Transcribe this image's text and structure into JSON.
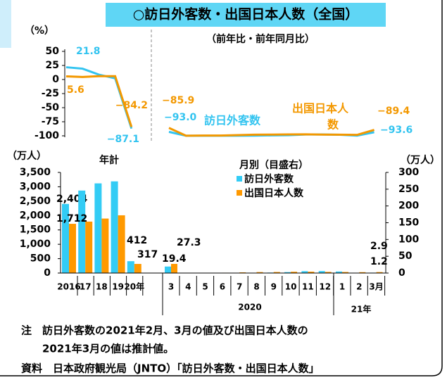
{
  "header": {
    "title": "○訪日外客数・出国日本人数（全国）"
  },
  "chart_data": [
    {
      "type": "line",
      "ylabel": "（%）",
      "ylim": [
        -100,
        50
      ],
      "yticks": [
        50,
        25,
        0,
        -25,
        -50,
        -75,
        -100
      ],
      "series": [
        {
          "color": "#33c4f0",
          "values": [
            21.8,
            19.3,
            8.7,
            2.2,
            -87.1
          ],
          "value_labels": [
            "21.8",
            null,
            null,
            null,
            "−87.1"
          ]
        },
        {
          "color": "#f39800",
          "values": [
            5.6,
            4.5,
            6.0,
            5.9,
            -84.2
          ],
          "value_labels": [
            "5.6",
            null,
            null,
            null,
            "−84.2"
          ]
        }
      ]
    },
    {
      "type": "line",
      "subtitle": "（前年比・前年同月比）",
      "ylim": [
        -100,
        50
      ],
      "annotations": [
        "訪日外客数",
        "出国日本人",
        "数"
      ],
      "series": [
        {
          "color": "#33c4f0",
          "values": [
            -93.0,
            -99.9,
            -99.9,
            -99.9,
            -99.9,
            -99.7,
            -99.2,
            -98.9,
            -97.7,
            -97.7,
            -98.1,
            -99.7,
            -93.6
          ],
          "value_labels": [
            "−93.0",
            null,
            null,
            null,
            null,
            null,
            null,
            null,
            null,
            null,
            null,
            null,
            "−93.6"
          ]
        },
        {
          "color": "#f39800",
          "values": [
            -85.9,
            -99.9,
            -99.6,
            -99.5,
            -98.7,
            -98.0,
            -97.8,
            -97.5,
            -97.3,
            -97.8,
            -97.9,
            -98.3,
            -89.4
          ],
          "value_labels": [
            "−85.9",
            null,
            null,
            null,
            null,
            null,
            null,
            null,
            null,
            null,
            null,
            null,
            "−89.4"
          ]
        }
      ]
    },
    {
      "type": "bar",
      "title": "年計",
      "ylabel": "（万人）",
      "categories": [
        "2016",
        "17",
        "18",
        "19",
        "20年"
      ],
      "ylim": [
        0,
        3500
      ],
      "yticks": [
        0,
        500,
        {
          "value": 1000,
          "label": "1,000"
        },
        {
          "value": 1500,
          "label": "1,500"
        },
        {
          "value": 2000,
          "label": "2,000"
        },
        {
          "value": 2500,
          "label": "2,500"
        },
        {
          "value": 3000,
          "label": "3,000"
        },
        {
          "value": 3500,
          "label": "3,500"
        }
      ],
      "series": [
        {
          "color": "#33ccf5",
          "values": [
            2404,
            2869,
            3119,
            3188,
            412
          ],
          "value_labels": [
            "2,404",
            null,
            null,
            null,
            "412"
          ]
        },
        {
          "color": "#ff9900",
          "values": [
            1712,
            1789,
            1895,
            2008,
            317
          ],
          "value_labels": [
            "1,712",
            null,
            null,
            null,
            "317"
          ]
        }
      ]
    },
    {
      "type": "bar",
      "legend_title": "月別（目盛右）",
      "ylabel": "（万人）",
      "categories": [
        "3",
        "4",
        "5",
        "6",
        "7",
        "8",
        "9",
        "10",
        "11",
        "12",
        "1",
        "2",
        "3月"
      ],
      "groups": [
        "2020",
        "21年"
      ],
      "ylim": [
        0,
        300
      ],
      "yticks": [
        0,
        50,
        100,
        150,
        200,
        250,
        300
      ],
      "series": [
        {
          "name": "訪日外客数",
          "color": "#33ccf5",
          "values": [
            19.4,
            0.29,
            0.17,
            0.26,
            0.39,
            0.85,
            1.4,
            2.8,
            5.6,
            5.9,
            4.6,
            0.74,
            1.2
          ],
          "value_labels": [
            "19.4",
            null,
            null,
            null,
            null,
            null,
            null,
            null,
            null,
            null,
            null,
            null,
            "1.2"
          ]
        },
        {
          "name": "出国日本人数",
          "color": "#ff9900",
          "values": [
            27.3,
            0.39,
            0.53,
            1.1,
            2.0,
            2.9,
            3.1,
            3.9,
            4.1,
            3.4,
            3.1,
            2.6,
            2.9
          ],
          "value_labels": [
            "27.3",
            null,
            null,
            null,
            null,
            null,
            null,
            null,
            null,
            null,
            null,
            null,
            "2.9"
          ]
        }
      ]
    }
  ],
  "notes": [
    "注　訪日外客数の2021年2月、3月の値及び出国日本人数の",
    "　　2021年3月の値は推計値。",
    "資料　日本政府観光局（JNTO）「訪日外客数・出国日本人数」"
  ]
}
